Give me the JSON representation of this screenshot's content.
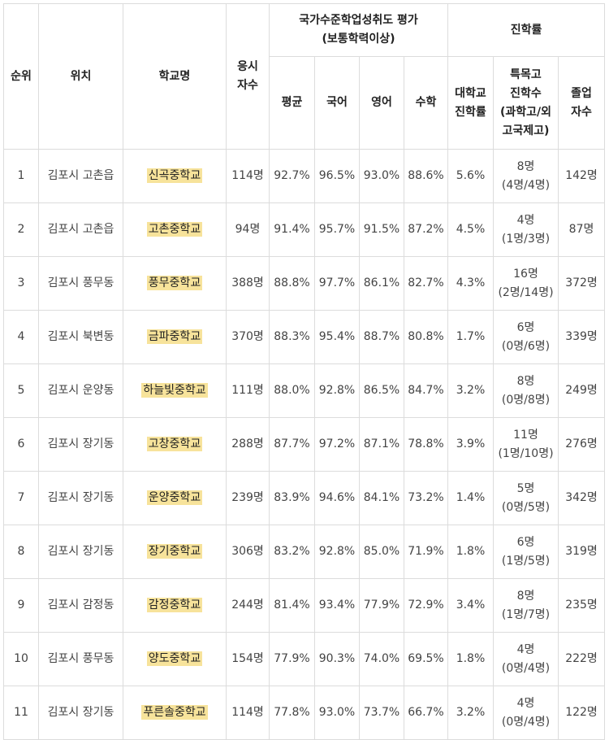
{
  "headers": {
    "rank": "순위",
    "location": "위치",
    "school": "학교명",
    "examinees_line1": "응시",
    "examinees_line2": "자수",
    "assessment_line1": "국가수준학업성취도 평가",
    "assessment_line2": "(보통학력이상)",
    "advancement": "진학률",
    "avg": "평균",
    "korean": "국어",
    "english": "영어",
    "math": "수학",
    "univ_line1": "대학교",
    "univ_line2": "진학률",
    "special_line1": "특목고",
    "special_line2": "진학수",
    "special_line3": "(과학고/외",
    "special_line4": "고국제고)",
    "grad_line1": "졸업",
    "grad_line2": "자수"
  },
  "rows": [
    {
      "rank": "1",
      "location": "김포시 고촌읍",
      "school": "신곡중학교",
      "examinees": "114명",
      "avg": "92.7%",
      "korean": "96.5%",
      "english": "93.0%",
      "math": "88.6%",
      "univ": "5.6%",
      "special": "8명",
      "special_detail": "(4명/4명)",
      "grads": "142명"
    },
    {
      "rank": "2",
      "location": "김포시 고촌읍",
      "school": "고촌중학교",
      "examinees": "94명",
      "avg": "91.4%",
      "korean": "95.7%",
      "english": "91.5%",
      "math": "87.2%",
      "univ": "4.5%",
      "special": "4명",
      "special_detail": "(1명/3명)",
      "grads": "87명"
    },
    {
      "rank": "3",
      "location": "김포시 풍무동",
      "school": "풍무중학교",
      "examinees": "388명",
      "avg": "88.8%",
      "korean": "97.7%",
      "english": "86.1%",
      "math": "82.7%",
      "univ": "4.3%",
      "special": "16명",
      "special_detail": "(2명/14명)",
      "grads": "372명"
    },
    {
      "rank": "4",
      "location": "김포시 북변동",
      "school": "금파중학교",
      "examinees": "370명",
      "avg": "88.3%",
      "korean": "95.4%",
      "english": "88.7%",
      "math": "80.8%",
      "univ": "1.7%",
      "special": "6명",
      "special_detail": "(0명/6명)",
      "grads": "339명"
    },
    {
      "rank": "5",
      "location": "김포시 운양동",
      "school": "하늘빛중학교",
      "examinees": "111명",
      "avg": "88.0%",
      "korean": "92.8%",
      "english": "86.5%",
      "math": "84.7%",
      "univ": "3.2%",
      "special": "8명",
      "special_detail": "(0명/8명)",
      "grads": "249명"
    },
    {
      "rank": "6",
      "location": "김포시 장기동",
      "school": "고창중학교",
      "examinees": "288명",
      "avg": "87.7%",
      "korean": "97.2%",
      "english": "87.1%",
      "math": "78.8%",
      "univ": "3.9%",
      "special": "11명",
      "special_detail": "(1명/10명)",
      "grads": "276명"
    },
    {
      "rank": "7",
      "location": "김포시 장기동",
      "school": "운양중학교",
      "examinees": "239명",
      "avg": "83.9%",
      "korean": "94.6%",
      "english": "84.1%",
      "math": "73.2%",
      "univ": "1.4%",
      "special": "5명",
      "special_detail": "(0명/5명)",
      "grads": "342명"
    },
    {
      "rank": "8",
      "location": "김포시 장기동",
      "school": "장기중학교",
      "examinees": "306명",
      "avg": "83.2%",
      "korean": "92.8%",
      "english": "85.0%",
      "math": "71.9%",
      "univ": "1.8%",
      "special": "6명",
      "special_detail": "(1명/5명)",
      "grads": "319명"
    },
    {
      "rank": "9",
      "location": "김포시 감정동",
      "school": "감정중학교",
      "examinees": "244명",
      "avg": "81.4%",
      "korean": "93.4%",
      "english": "77.9%",
      "math": "72.9%",
      "univ": "3.4%",
      "special": "8명",
      "special_detail": "(1명/7명)",
      "grads": "235명"
    },
    {
      "rank": "10",
      "location": "김포시 풍무동",
      "school": "양도중학교",
      "examinees": "154명",
      "avg": "77.9%",
      "korean": "90.3%",
      "english": "74.0%",
      "math": "69.5%",
      "univ": "1.8%",
      "special": "4명",
      "special_detail": "(0명/4명)",
      "grads": "222명"
    },
    {
      "rank": "11",
      "location": "김포시 장기동",
      "school": "푸른솔중학교",
      "examinees": "114명",
      "avg": "77.8%",
      "korean": "93.0%",
      "english": "73.7%",
      "math": "66.7%",
      "univ": "3.2%",
      "special": "4명",
      "special_detail": "(0명/4명)",
      "grads": "122명"
    }
  ]
}
